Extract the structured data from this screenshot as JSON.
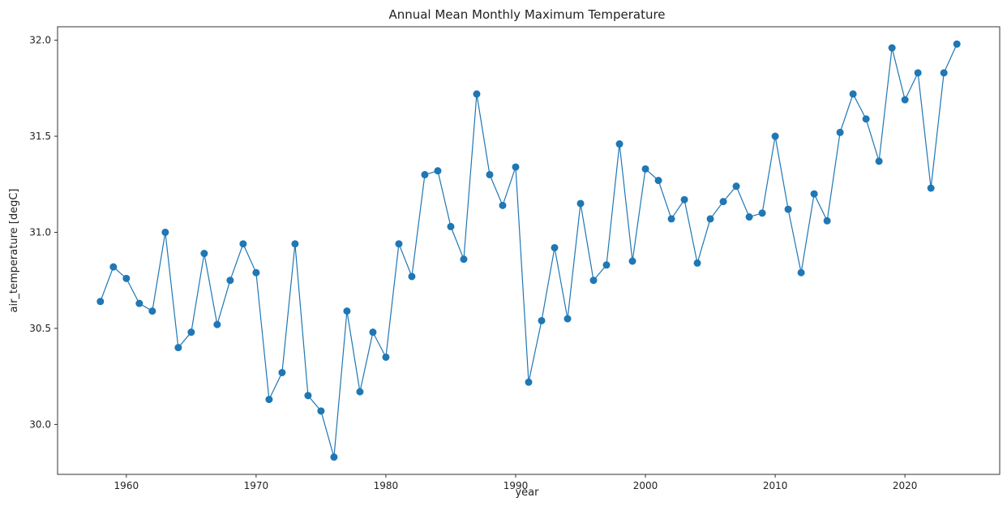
{
  "chart_data": {
    "type": "line",
    "title": "Annual Mean Monthly Maximum Temperature",
    "xlabel": "year",
    "ylabel": "air_temperature [degC]",
    "xlim": [
      1954.7,
      2027.3
    ],
    "ylim": [
      29.74,
      32.07
    ],
    "xticks": [
      1960,
      1970,
      1980,
      1990,
      2000,
      2010,
      2020
    ],
    "xtick_labels": [
      "1960",
      "1970",
      "1980",
      "1990",
      "2000",
      "2010",
      "2020"
    ],
    "yticks": [
      30.0,
      30.5,
      31.0,
      31.5,
      32.0
    ],
    "ytick_labels": [
      "30.0",
      "30.5",
      "31.0",
      "31.5",
      "32.0"
    ],
    "grid": false,
    "color": "#1f77b4",
    "marker": "circle",
    "x": [
      1958,
      1959,
      1960,
      1961,
      1962,
      1963,
      1964,
      1965,
      1966,
      1967,
      1968,
      1969,
      1970,
      1971,
      1972,
      1973,
      1974,
      1975,
      1976,
      1977,
      1978,
      1979,
      1980,
      1981,
      1982,
      1983,
      1984,
      1985,
      1986,
      1987,
      1988,
      1989,
      1990,
      1991,
      1992,
      1993,
      1994,
      1995,
      1996,
      1997,
      1998,
      1999,
      2000,
      2001,
      2002,
      2003,
      2004,
      2005,
      2006,
      2007,
      2008,
      2009,
      2010,
      2011,
      2012,
      2013,
      2014,
      2015,
      2016,
      2017,
      2018,
      2019,
      2020,
      2021,
      2022,
      2023,
      2024
    ],
    "y": [
      30.64,
      30.82,
      30.76,
      30.63,
      30.59,
      31.0,
      30.4,
      30.48,
      30.89,
      30.52,
      30.75,
      30.94,
      30.79,
      30.13,
      30.27,
      30.94,
      30.15,
      30.07,
      29.83,
      30.59,
      30.17,
      30.48,
      30.35,
      30.94,
      30.77,
      31.3,
      31.32,
      31.03,
      30.86,
      31.72,
      31.3,
      31.14,
      31.34,
      30.22,
      30.54,
      30.92,
      30.55,
      31.15,
      30.75,
      30.83,
      31.46,
      30.85,
      31.33,
      31.27,
      31.07,
      31.17,
      30.84,
      31.07,
      31.16,
      31.24,
      31.08,
      31.1,
      31.5,
      31.12,
      30.79,
      31.2,
      31.06,
      31.52,
      31.72,
      31.59,
      31.37,
      31.96,
      31.69,
      31.83,
      31.23,
      31.83,
      31.98
    ]
  }
}
